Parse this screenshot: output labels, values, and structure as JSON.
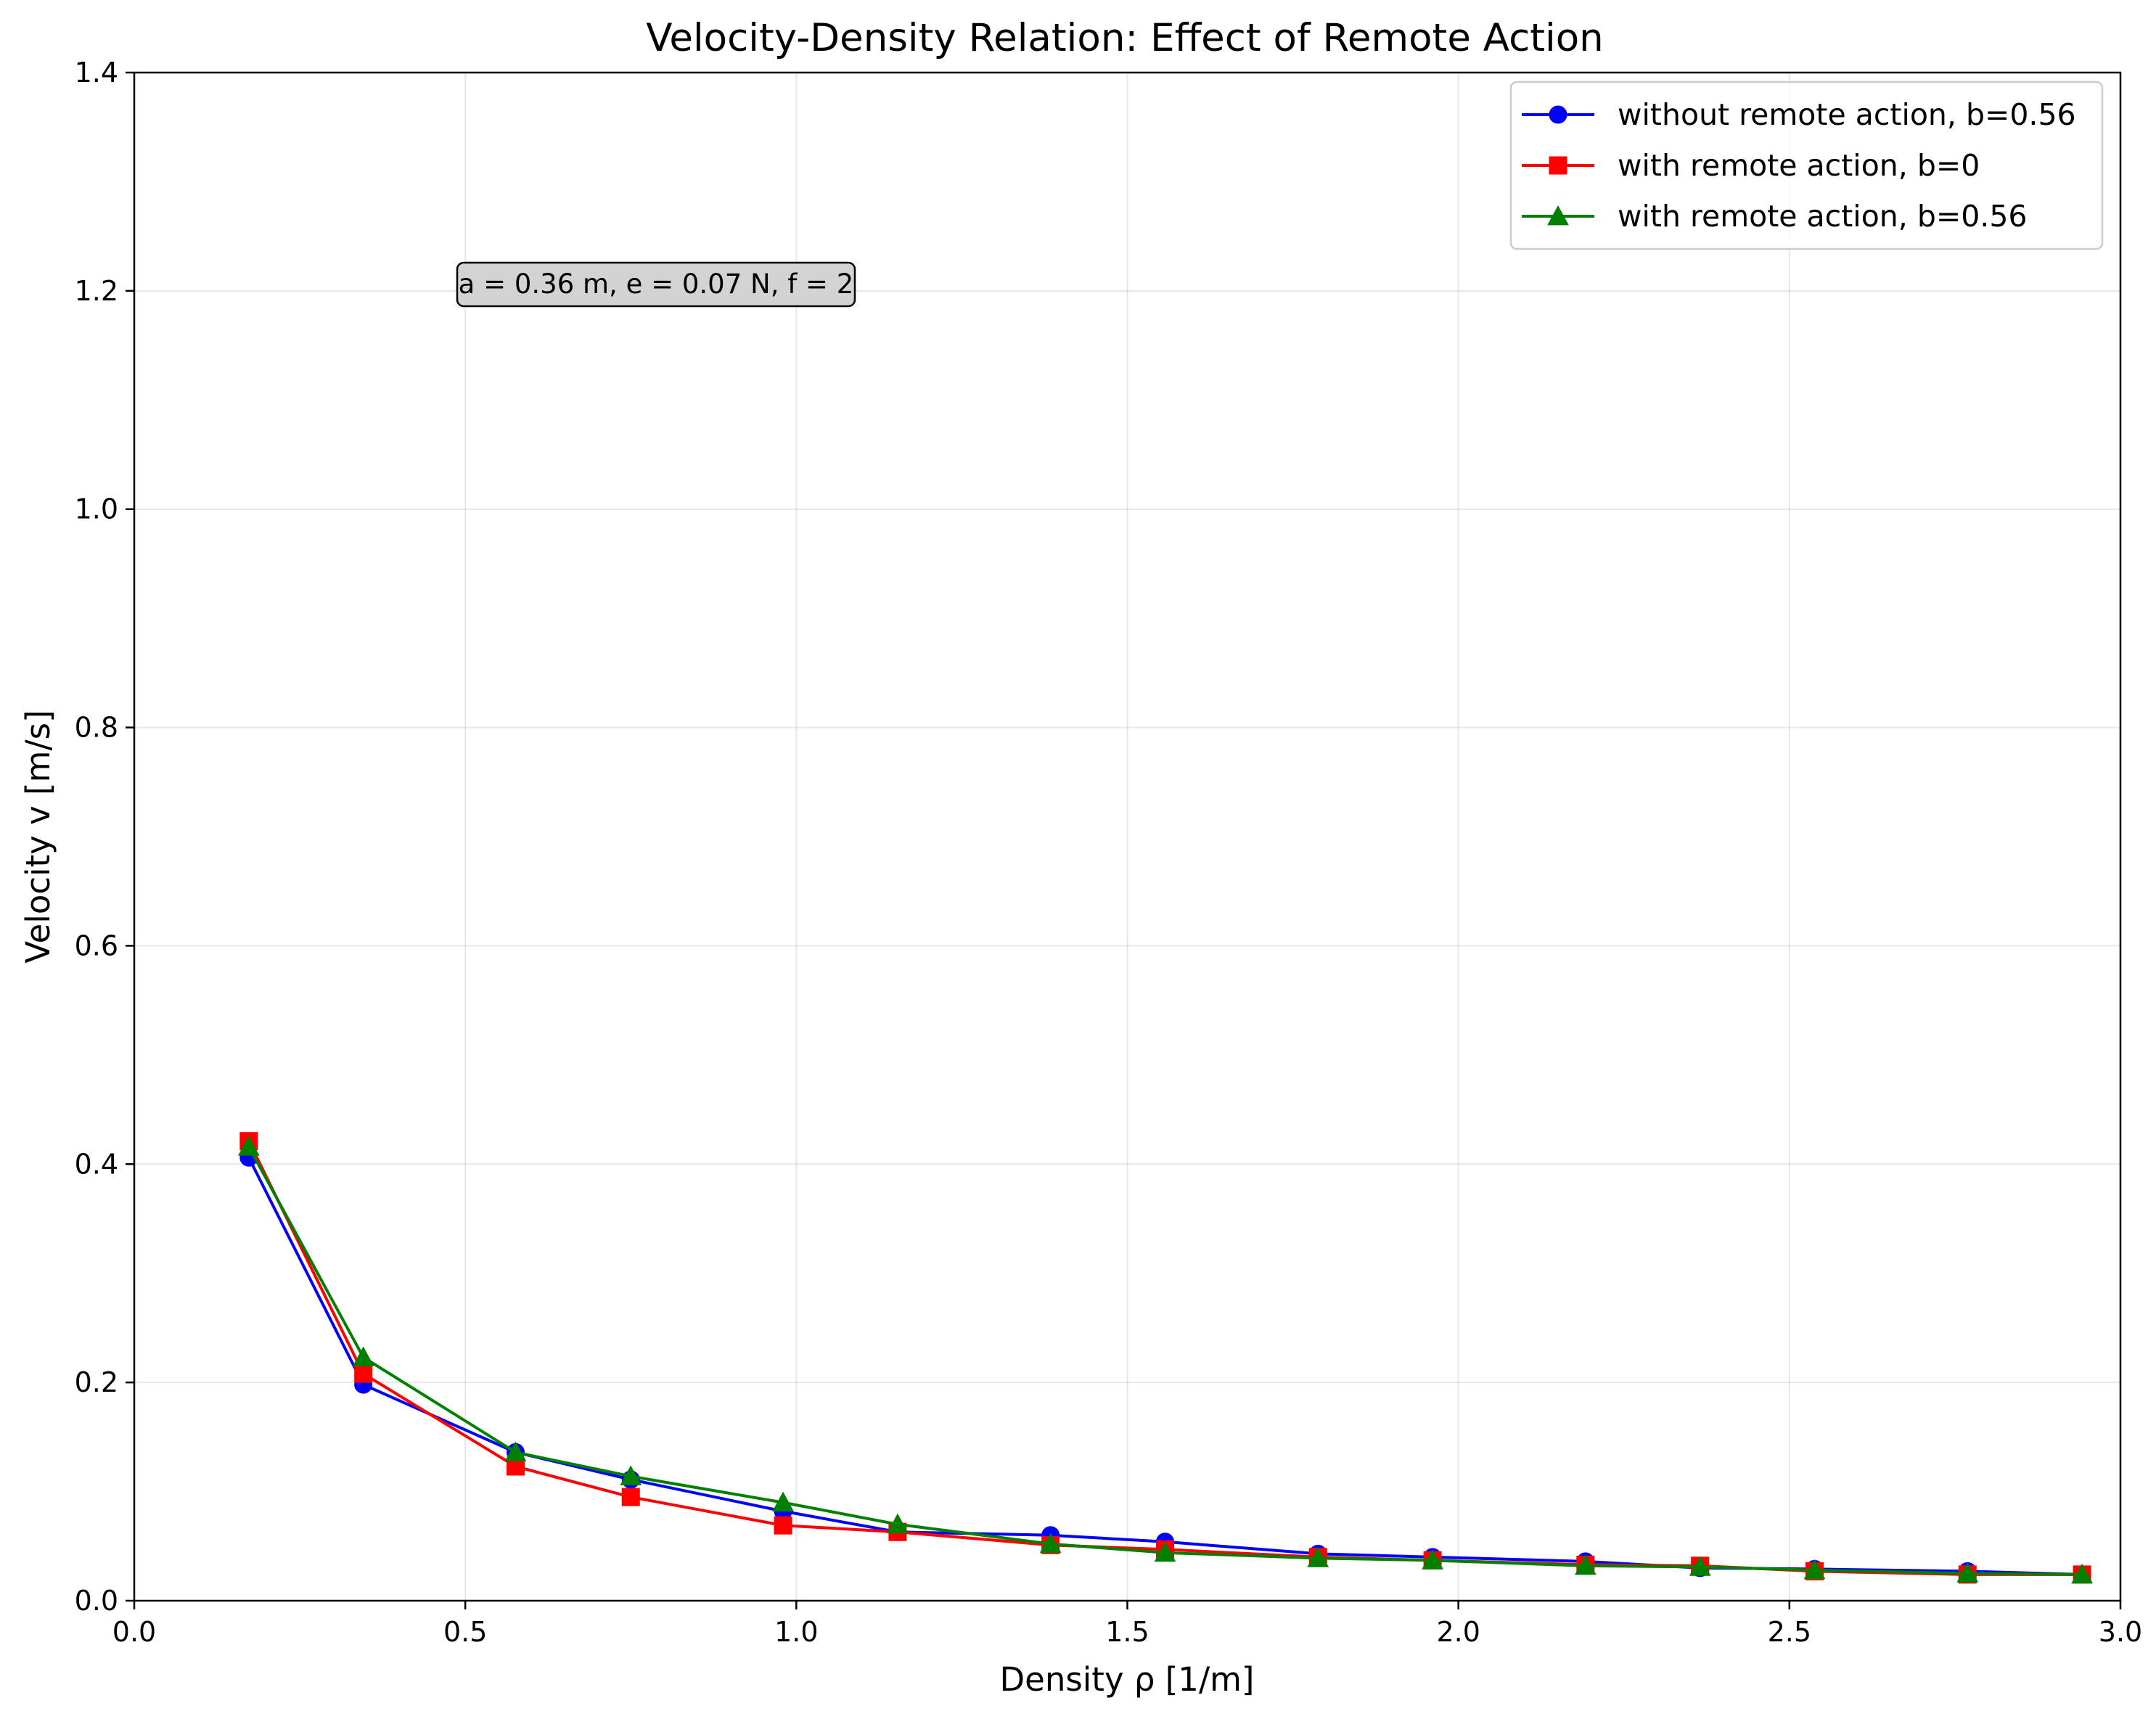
{
  "chart_data": {
    "type": "line",
    "title": "Velocity-Density Relation: Effect of Remote Action",
    "xlabel": "Density ρ [1/m]",
    "ylabel": "Velocity v [m/s]",
    "xlim": [
      0.0,
      3.0
    ],
    "ylim": [
      0.0,
      1.4
    ],
    "xticks": [
      "0.0",
      "0.5",
      "1.0",
      "1.5",
      "2.0",
      "2.5",
      "3.0"
    ],
    "yticks": [
      "0.0",
      "0.2",
      "0.4",
      "0.6",
      "0.8",
      "1.0",
      "1.2",
      "1.4"
    ],
    "grid": true,
    "legend_position": "top-right",
    "annotation": "a = 0.36 m, e = 0.07 N, f = 2",
    "series": [
      {
        "name": "without remote action, b=0.56",
        "color": "#0000ff",
        "marker": "circle",
        "x": [
          0.173,
          0.346,
          0.576,
          0.75,
          0.98,
          1.153,
          1.384,
          1.557,
          1.788,
          1.961,
          2.192,
          2.365,
          2.538,
          2.769,
          2.942
        ],
        "y": [
          0.406,
          0.198,
          0.136,
          0.111,
          0.082,
          0.063,
          0.06,
          0.054,
          0.043,
          0.04,
          0.036,
          0.03,
          0.029,
          0.027,
          0.024
        ]
      },
      {
        "name": "with remote action, b=0",
        "color": "#ff0000",
        "marker": "square",
        "x": [
          0.173,
          0.346,
          0.576,
          0.75,
          0.98,
          1.153,
          1.384,
          1.557,
          1.788,
          1.961,
          2.192,
          2.365,
          2.538,
          2.769,
          2.942
        ],
        "y": [
          0.421,
          0.208,
          0.123,
          0.095,
          0.069,
          0.063,
          0.051,
          0.047,
          0.04,
          0.037,
          0.033,
          0.032,
          0.027,
          0.024,
          0.024
        ]
      },
      {
        "name": "with remote action, b=0.56",
        "color": "#008000",
        "marker": "triangle",
        "x": [
          0.173,
          0.346,
          0.576,
          0.75,
          0.98,
          1.153,
          1.384,
          1.557,
          1.788,
          1.961,
          2.192,
          2.365,
          2.538,
          2.769,
          2.942
        ],
        "y": [
          0.416,
          0.223,
          0.136,
          0.114,
          0.09,
          0.07,
          0.052,
          0.044,
          0.039,
          0.037,
          0.032,
          0.031,
          0.028,
          0.025,
          0.024
        ]
      }
    ]
  }
}
